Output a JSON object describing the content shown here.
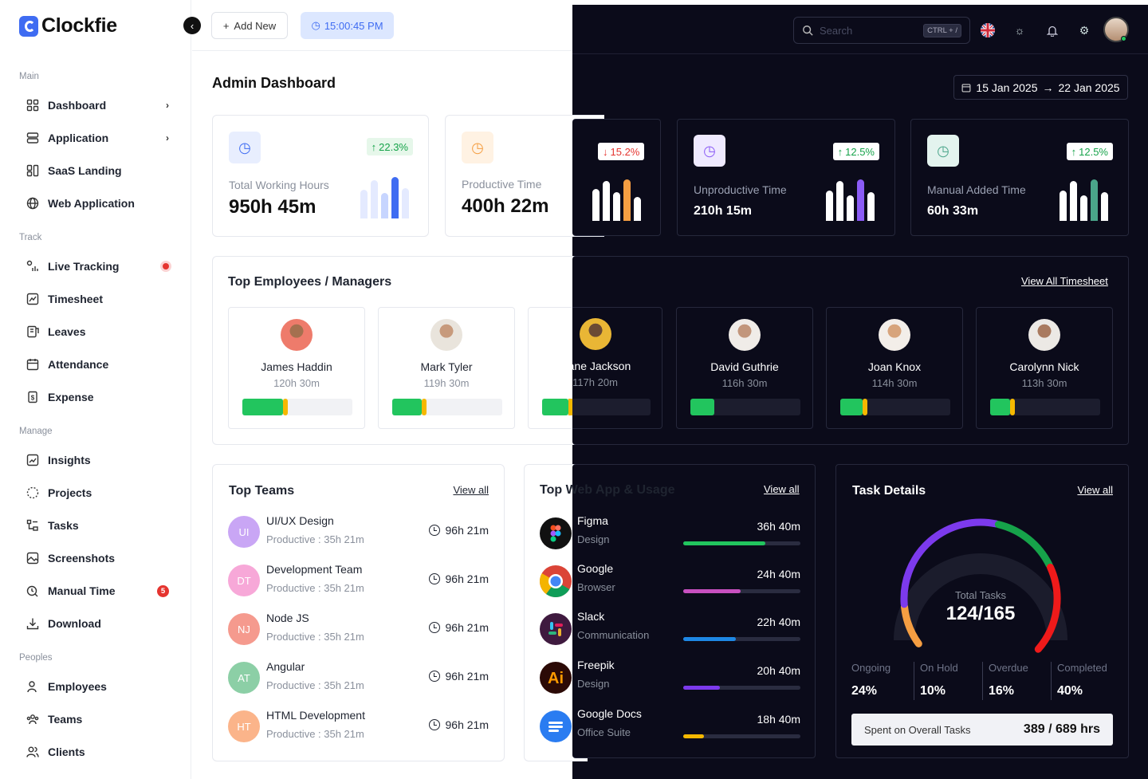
{
  "app": {
    "name": "Clockfie"
  },
  "sidebar": {
    "sections": [
      {
        "title": "Main",
        "items": [
          {
            "label": "Dashboard",
            "icon": "dashboard-icon",
            "chevron": true
          },
          {
            "label": "Application",
            "icon": "application-icon",
            "chevron": true
          },
          {
            "label": "SaaS Landing",
            "icon": "saas-landing-icon"
          },
          {
            "label": "Web Application",
            "icon": "globe-icon"
          }
        ]
      },
      {
        "title": "Track",
        "items": [
          {
            "label": "Live Tracking",
            "icon": "live-tracking-icon",
            "live_dot": true
          },
          {
            "label": "Timesheet",
            "icon": "timesheet-icon"
          },
          {
            "label": "Leaves",
            "icon": "leaves-icon"
          },
          {
            "label": "Attendance",
            "icon": "calendar-icon"
          },
          {
            "label": "Expense",
            "icon": "expense-icon"
          }
        ]
      },
      {
        "title": "Manage",
        "items": [
          {
            "label": "Insights",
            "icon": "insights-icon"
          },
          {
            "label": "Projects",
            "icon": "projects-icon"
          },
          {
            "label": "Tasks",
            "icon": "tasks-icon"
          },
          {
            "label": "Screenshots",
            "icon": "screenshots-icon"
          },
          {
            "label": "Manual Time",
            "icon": "manual-time-icon",
            "badge": "5"
          },
          {
            "label": "Download",
            "icon": "download-icon"
          }
        ]
      },
      {
        "title": "Peoples",
        "items": [
          {
            "label": "Employees",
            "icon": "employees-icon"
          },
          {
            "label": "Teams",
            "icon": "teams-icon"
          },
          {
            "label": "Clients",
            "icon": "clients-icon"
          }
        ]
      }
    ]
  },
  "toolbar": {
    "add_new": "Add New",
    "clock": "15:00:45 PM"
  },
  "header": {
    "search_placeholder": "Search",
    "shortcut": "CTRL + /"
  },
  "page": {
    "title": "Admin Dashboard",
    "date_from": "15 Jan 2025",
    "date_to": "22 Jan 2025"
  },
  "stats": [
    {
      "label": "Total Working Hours",
      "value": "950h 45m",
      "trend": "22.3%",
      "direction": "up",
      "color": "#3f6cf2"
    },
    {
      "label": "Productive Time",
      "value": "400h 22m",
      "trend": "15.2%",
      "direction": "down",
      "color": "#f59e42"
    },
    {
      "label": "Unproductive Time",
      "value": "210h 15m",
      "trend": "12.5%",
      "direction": "up",
      "color": "#8b5cf6"
    },
    {
      "label": "Manual Added Time",
      "value": "60h 33m",
      "trend": "12.5%",
      "direction": "up",
      "color": "#4aa58a"
    }
  ],
  "top_employees": {
    "title": "Top Employees / Managers",
    "view_all": "View All Timesheet",
    "items": [
      {
        "name": "James Haddin",
        "hours": "120h 30m",
        "progress": 0.37
      },
      {
        "name": "Mark Tyler",
        "hours": "119h 30m",
        "progress": 0.27
      },
      {
        "name": "Liane Jackson",
        "hours": "117h 20m",
        "progress": 0.24
      },
      {
        "name": "David Guthrie",
        "hours": "116h 30m",
        "progress": 0.22
      },
      {
        "name": "Joan Knox",
        "hours": "114h 30m",
        "progress": 0.2
      },
      {
        "name": "Carolynn Nick",
        "hours": "113h 30m",
        "progress": 0.18
      }
    ]
  },
  "top_teams": {
    "title": "Top Teams",
    "view_all": "View all",
    "items": [
      {
        "initials": "UI",
        "name": "UI/UX Design",
        "productive": "Productive : 35h 21m",
        "time": "96h 21m",
        "color": "#c9a6f5"
      },
      {
        "initials": "DT",
        "name": "Development Team",
        "productive": "Productive : 35h 21m",
        "time": "96h 21m",
        "color": "#f7a8d8"
      },
      {
        "initials": "NJ",
        "name": "Node JS",
        "productive": "Productive : 35h 21m",
        "time": "96h 21m",
        "color": "#f59a8e"
      },
      {
        "initials": "AT",
        "name": "Angular",
        "productive": "Productive : 35h 21m",
        "time": "96h 21m",
        "color": "#8ccfa6"
      },
      {
        "initials": "HT",
        "name": "HTML Development",
        "productive": "Productive : 35h 21m",
        "time": "96h 21m",
        "color": "#fbb48a"
      }
    ]
  },
  "web_apps": {
    "title": "Top Web App & Usage",
    "view_all": "View all",
    "items": [
      {
        "name": "Figma",
        "category": "Design",
        "time": "36h 40m",
        "usage": 0.7,
        "color": "#22c55e",
        "icon": "figma-icon"
      },
      {
        "name": "Google",
        "category": "Browser",
        "time": "24h 40m",
        "usage": 0.49,
        "color": "#c850c0",
        "icon": "google-chrome-icon"
      },
      {
        "name": "Slack",
        "category": "Communication",
        "time": "22h 40m",
        "usage": 0.45,
        "color": "#1e88e5",
        "icon": "slack-icon"
      },
      {
        "name": "Freepik",
        "category": "Design",
        "time": "20h 40m",
        "usage": 0.31,
        "color": "#7c3aed",
        "icon": "freepik-icon"
      },
      {
        "name": "Google Docs",
        "category": "Office Suite",
        "time": "18h 40m",
        "usage": 0.18,
        "color": "#f5b800",
        "icon": "google-docs-icon"
      }
    ]
  },
  "tasks": {
    "title": "Task Details",
    "view_all": "View all",
    "total_label": "Total Tasks",
    "total_value": "124/165",
    "stats": [
      {
        "label": "Ongoing",
        "value": "24%"
      },
      {
        "label": "On Hold",
        "value": "10%"
      },
      {
        "label": "Overdue",
        "value": "16%"
      },
      {
        "label": "Completed",
        "value": "40%"
      }
    ],
    "spent_label": "Spent on Overall Tasks",
    "spent_value": "389 / 689 hrs"
  }
}
